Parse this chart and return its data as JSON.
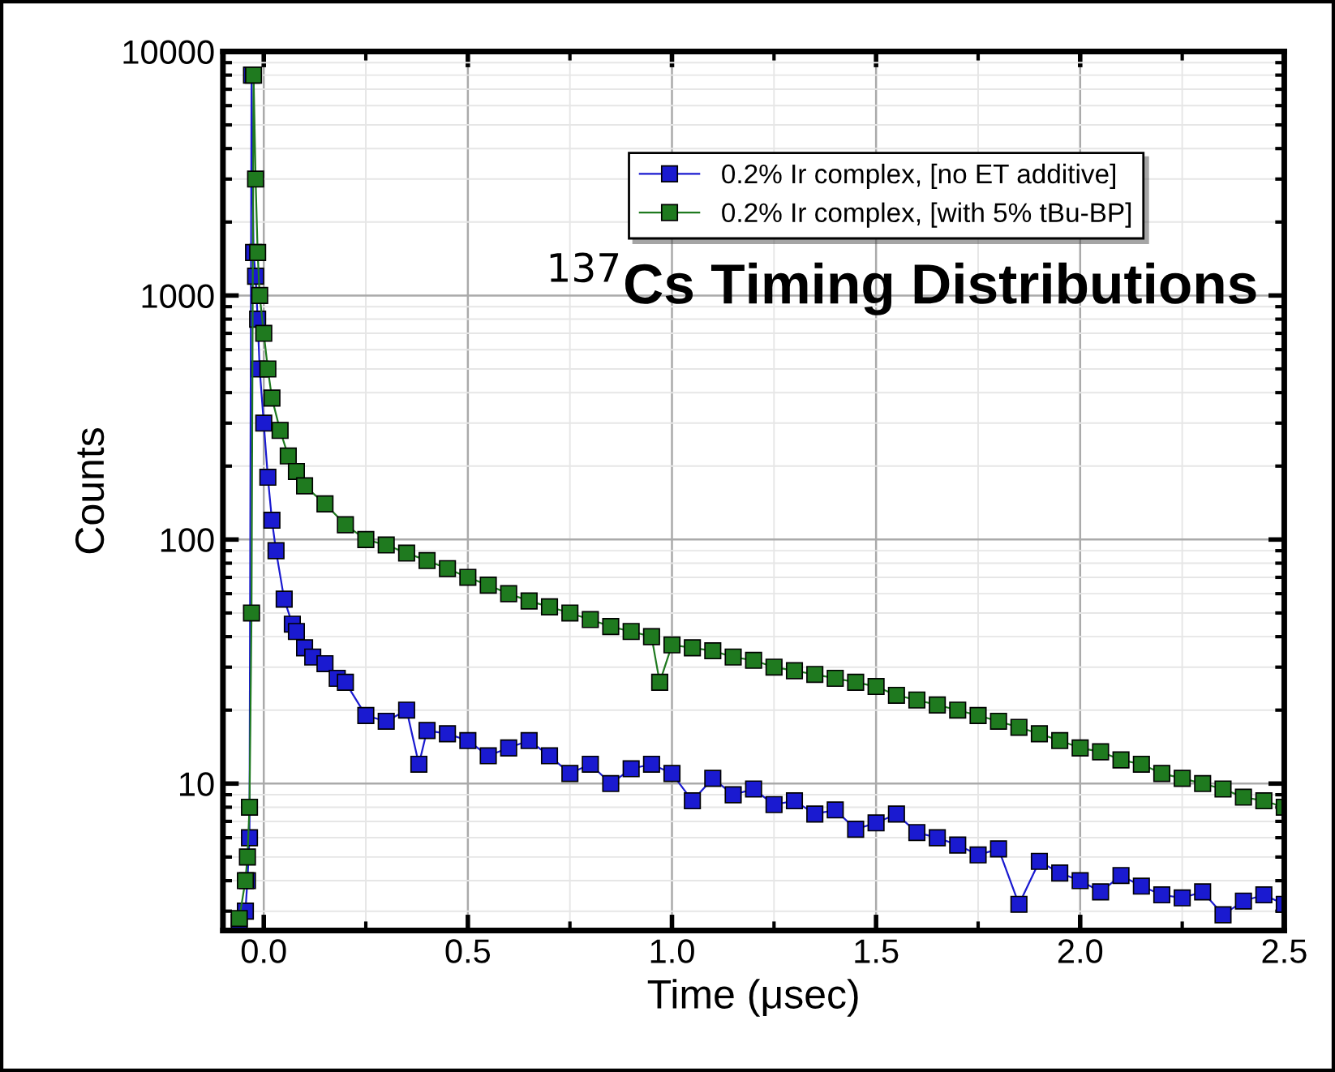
{
  "chart_data": {
    "type": "line",
    "xlabel": "Time (μsec)",
    "ylabel": "Counts",
    "annotations": [
      "$^{137}$Cs Timing Distributions"
    ],
    "xlim": [
      -0.1,
      2.5
    ],
    "xticks": [
      {
        "value": 0,
        "label": "0.0"
      },
      0.5,
      {
        "value": 1,
        "label": "1.0"
      },
      1.5,
      {
        "value": 2,
        "label": "2.0"
      },
      2.5
    ],
    "ylim": [
      2.5,
      10000
    ],
    "yticks": [
      10,
      100,
      1000,
      10000
    ],
    "log": true,
    "grid": true,
    "legend": "top right",
    "marker": "square",
    "line_style": "solid",
    "series": [
      {
        "name": "0.2% Ir complex, [no ET additive]",
        "color": "#1a1ad0",
        "x": [
          -0.06,
          -0.045,
          -0.04,
          -0.035,
          -0.03,
          -0.025,
          -0.02,
          -0.015,
          -0.01,
          0.0,
          0.01,
          0.02,
          0.03,
          0.05,
          0.07,
          0.08,
          0.1,
          0.12,
          0.15,
          0.18,
          0.2,
          0.25,
          0.3,
          0.35,
          0.38,
          0.4,
          0.45,
          0.5,
          0.55,
          0.6,
          0.65,
          0.7,
          0.75,
          0.8,
          0.85,
          0.9,
          0.95,
          1.0,
          1.05,
          1.1,
          1.15,
          1.2,
          1.25,
          1.3,
          1.35,
          1.4,
          1.45,
          1.5,
          1.55,
          1.6,
          1.65,
          1.7,
          1.75,
          1.8,
          1.85,
          1.9,
          1.95,
          2.0,
          2.05,
          2.1,
          2.15,
          2.2,
          2.25,
          2.3,
          2.35,
          2.4,
          2.45,
          2.5
        ],
        "values": [
          2.7,
          3,
          4,
          6,
          8000,
          1500,
          1200,
          800,
          500,
          300,
          180,
          120,
          90,
          57,
          45,
          42,
          36,
          33,
          31,
          27,
          26,
          19,
          18,
          20,
          12,
          16.5,
          16,
          15,
          13,
          14,
          15,
          13,
          11,
          12,
          10,
          11.5,
          12,
          11,
          8.5,
          10.5,
          9,
          9.5,
          8.2,
          8.5,
          7.5,
          7.8,
          6.5,
          6.9,
          7.5,
          6.3,
          6,
          5.6,
          5.1,
          5.4,
          3.2,
          4.8,
          4.3,
          4,
          3.6,
          4.2,
          3.8,
          3.5,
          3.4,
          3.6,
          2.9,
          3.3,
          3.5,
          3.2
        ]
      },
      {
        "name": "0.2% Ir complex, [with 5% tBu-BP]",
        "color": "#1f7a1f",
        "x": [
          -0.06,
          -0.045,
          -0.04,
          -0.035,
          -0.03,
          -0.025,
          -0.02,
          -0.015,
          -0.01,
          0.0,
          0.01,
          0.02,
          0.04,
          0.06,
          0.08,
          0.1,
          0.15,
          0.2,
          0.25,
          0.3,
          0.35,
          0.4,
          0.45,
          0.5,
          0.55,
          0.6,
          0.65,
          0.7,
          0.75,
          0.8,
          0.85,
          0.9,
          0.95,
          0.97,
          1.0,
          1.05,
          1.1,
          1.15,
          1.2,
          1.25,
          1.3,
          1.35,
          1.4,
          1.45,
          1.5,
          1.55,
          1.6,
          1.65,
          1.7,
          1.75,
          1.8,
          1.85,
          1.9,
          1.95,
          2.0,
          2.05,
          2.1,
          2.15,
          2.2,
          2.25,
          2.3,
          2.35,
          2.4,
          2.45,
          2.5
        ],
        "values": [
          2.8,
          4,
          5,
          8,
          50,
          8000,
          3000,
          1500,
          1000,
          700,
          500,
          380,
          280,
          220,
          190,
          166,
          140,
          115,
          100,
          95,
          88,
          82,
          76,
          70,
          65,
          60,
          56,
          53,
          50,
          47,
          44,
          42,
          40,
          26,
          37,
          36,
          35,
          33,
          32,
          30,
          29,
          28,
          27,
          26,
          25,
          23,
          22,
          21,
          20,
          19,
          18,
          17,
          16,
          15,
          14,
          13.5,
          12.5,
          12,
          11,
          10.5,
          10,
          9.5,
          8.8,
          8.5,
          8
        ]
      }
    ]
  }
}
